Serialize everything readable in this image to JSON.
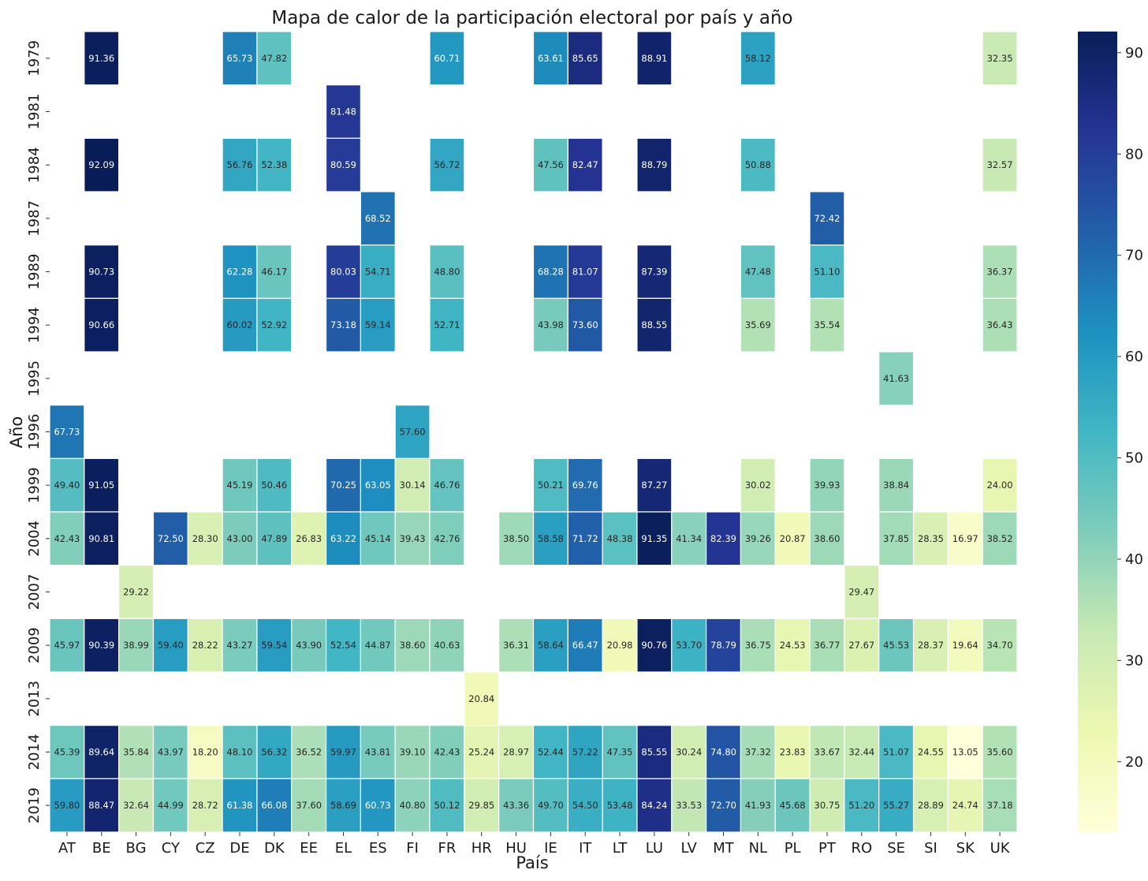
{
  "chart_data": {
    "type": "heatmap",
    "title": "Mapa de calor de la participación electoral por país y año",
    "xlabel": "País",
    "ylabel": "Año",
    "colormap": "YlGnBu",
    "vmin": 13.05,
    "vmax": 92.09,
    "colorbar_ticks": [
      20,
      30,
      40,
      50,
      60,
      70,
      80,
      90
    ],
    "x": [
      "AT",
      "BE",
      "BG",
      "CY",
      "CZ",
      "DE",
      "DK",
      "EE",
      "EL",
      "ES",
      "FI",
      "FR",
      "HR",
      "HU",
      "IE",
      "IT",
      "LT",
      "LU",
      "LV",
      "MT",
      "NL",
      "PL",
      "PT",
      "RO",
      "SE",
      "SI",
      "SK",
      "UK"
    ],
    "y": [
      "1979",
      "1981",
      "1984",
      "1987",
      "1989",
      "1994",
      "1995",
      "1996",
      "1999",
      "2004",
      "2007",
      "2009",
      "2013",
      "2014",
      "2019"
    ],
    "values": [
      [
        null,
        91.36,
        null,
        null,
        null,
        65.73,
        47.82,
        null,
        null,
        null,
        null,
        60.71,
        null,
        null,
        63.61,
        85.65,
        null,
        88.91,
        null,
        null,
        58.12,
        null,
        null,
        null,
        null,
        null,
        null,
        32.35
      ],
      [
        null,
        null,
        null,
        null,
        null,
        null,
        null,
        null,
        81.48,
        null,
        null,
        null,
        null,
        null,
        null,
        null,
        null,
        null,
        null,
        null,
        null,
        null,
        null,
        null,
        null,
        null,
        null,
        null
      ],
      [
        null,
        92.09,
        null,
        null,
        null,
        56.76,
        52.38,
        null,
        80.59,
        null,
        null,
        56.72,
        null,
        null,
        47.56,
        82.47,
        null,
        88.79,
        null,
        null,
        50.88,
        null,
        null,
        null,
        null,
        null,
        null,
        32.57
      ],
      [
        null,
        null,
        null,
        null,
        null,
        null,
        null,
        null,
        null,
        68.52,
        null,
        null,
        null,
        null,
        null,
        null,
        null,
        null,
        null,
        null,
        null,
        null,
        72.42,
        null,
        null,
        null,
        null,
        null
      ],
      [
        null,
        90.73,
        null,
        null,
        null,
        62.28,
        46.17,
        null,
        80.03,
        54.71,
        null,
        48.8,
        null,
        null,
        68.28,
        81.07,
        null,
        87.39,
        null,
        null,
        47.48,
        null,
        51.1,
        null,
        null,
        null,
        null,
        36.37
      ],
      [
        null,
        90.66,
        null,
        null,
        null,
        60.02,
        52.92,
        null,
        73.18,
        59.14,
        null,
        52.71,
        null,
        null,
        43.98,
        73.6,
        null,
        88.55,
        null,
        null,
        35.69,
        null,
        35.54,
        null,
        null,
        null,
        null,
        36.43
      ],
      [
        null,
        null,
        null,
        null,
        null,
        null,
        null,
        null,
        null,
        null,
        null,
        null,
        null,
        null,
        null,
        null,
        null,
        null,
        null,
        null,
        null,
        null,
        null,
        null,
        41.63,
        null,
        null,
        null
      ],
      [
        67.73,
        null,
        null,
        null,
        null,
        null,
        null,
        null,
        null,
        null,
        57.6,
        null,
        null,
        null,
        null,
        null,
        null,
        null,
        null,
        null,
        null,
        null,
        null,
        null,
        null,
        null,
        null,
        null
      ],
      [
        49.4,
        91.05,
        null,
        null,
        null,
        45.19,
        50.46,
        null,
        70.25,
        63.05,
        30.14,
        46.76,
        null,
        null,
        50.21,
        69.76,
        null,
        87.27,
        null,
        null,
        30.02,
        null,
        39.93,
        null,
        38.84,
        null,
        null,
        24.0
      ],
      [
        42.43,
        90.81,
        null,
        72.5,
        28.3,
        43.0,
        47.89,
        26.83,
        63.22,
        45.14,
        39.43,
        42.76,
        null,
        38.5,
        58.58,
        71.72,
        48.38,
        91.35,
        41.34,
        82.39,
        39.26,
        20.87,
        38.6,
        null,
        37.85,
        28.35,
        16.97,
        38.52
      ],
      [
        null,
        null,
        29.22,
        null,
        null,
        null,
        null,
        null,
        null,
        null,
        null,
        null,
        null,
        null,
        null,
        null,
        null,
        null,
        null,
        null,
        null,
        null,
        null,
        29.47,
        null,
        null,
        null,
        null
      ],
      [
        45.97,
        90.39,
        38.99,
        59.4,
        28.22,
        43.27,
        59.54,
        43.9,
        52.54,
        44.87,
        38.6,
        40.63,
        null,
        36.31,
        58.64,
        66.47,
        20.98,
        90.76,
        53.7,
        78.79,
        36.75,
        24.53,
        36.77,
        27.67,
        45.53,
        28.37,
        19.64,
        34.7
      ],
      [
        null,
        null,
        null,
        null,
        null,
        null,
        null,
        null,
        null,
        null,
        null,
        null,
        20.84,
        null,
        null,
        null,
        null,
        null,
        null,
        null,
        null,
        null,
        null,
        null,
        null,
        null,
        null,
        null
      ],
      [
        45.39,
        89.64,
        35.84,
        43.97,
        18.2,
        48.1,
        56.32,
        36.52,
        59.97,
        43.81,
        39.1,
        42.43,
        25.24,
        28.97,
        52.44,
        57.22,
        47.35,
        85.55,
        30.24,
        74.8,
        37.32,
        23.83,
        33.67,
        32.44,
        51.07,
        24.55,
        13.05,
        35.6
      ],
      [
        59.8,
        88.47,
        32.64,
        44.99,
        28.72,
        61.38,
        66.08,
        37.6,
        58.69,
        60.73,
        40.8,
        50.12,
        29.85,
        43.36,
        49.7,
        54.5,
        53.48,
        84.24,
        33.53,
        72.7,
        41.93,
        45.68,
        30.75,
        51.2,
        55.27,
        28.89,
        24.74,
        37.18
      ]
    ]
  }
}
